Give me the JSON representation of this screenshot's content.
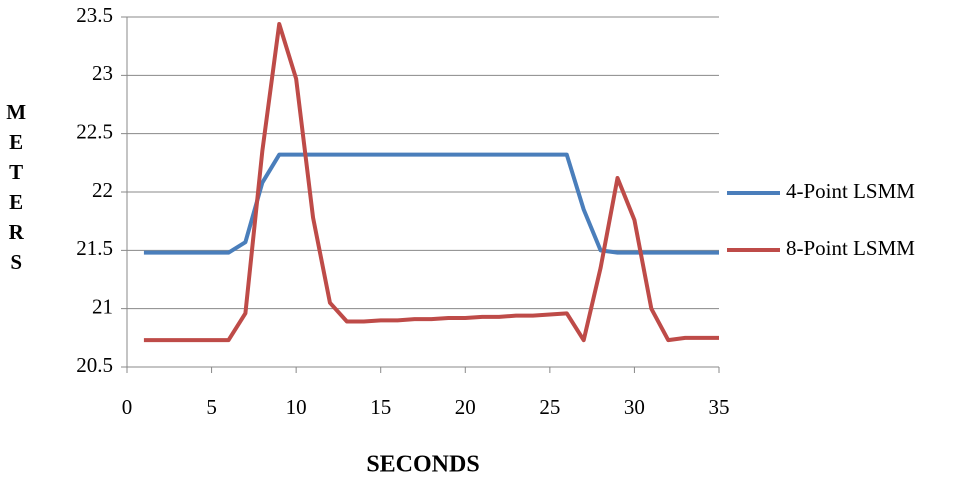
{
  "chart_data": {
    "type": "line",
    "x_label": "SECONDS",
    "y_label": "METERS",
    "x": [
      1,
      2,
      3,
      4,
      5,
      6,
      7,
      8,
      9,
      10,
      11,
      12,
      13,
      14,
      15,
      16,
      17,
      18,
      19,
      20,
      21,
      22,
      23,
      24,
      25,
      26,
      27,
      28,
      29,
      30,
      31,
      32,
      33,
      34,
      35
    ],
    "series": [
      {
        "name": "4-Point LSMM",
        "color": "#4a7ebb",
        "values": [
          21.48,
          21.48,
          21.48,
          21.48,
          21.48,
          21.48,
          21.57,
          22.08,
          22.32,
          22.32,
          22.32,
          22.32,
          22.32,
          22.32,
          22.32,
          22.32,
          22.32,
          22.32,
          22.32,
          22.32,
          22.32,
          22.32,
          22.32,
          22.32,
          22.32,
          22.32,
          21.85,
          21.5,
          21.48,
          21.48,
          21.48,
          21.48,
          21.48,
          21.48,
          21.48
        ]
      },
      {
        "name": "8-Point LSMM",
        "color": "#be4b48",
        "values": [
          20.73,
          20.73,
          20.73,
          20.73,
          20.73,
          20.73,
          20.96,
          22.35,
          23.44,
          22.97,
          21.78,
          21.05,
          20.89,
          20.89,
          20.9,
          20.9,
          20.91,
          20.91,
          20.92,
          20.92,
          20.93,
          20.93,
          20.94,
          20.94,
          20.95,
          20.96,
          20.73,
          21.35,
          22.12,
          21.76,
          21.0,
          20.73,
          20.75,
          20.75,
          20.75
        ]
      }
    ],
    "xlim": [
      0,
      35
    ],
    "xticks": [
      0,
      5,
      10,
      15,
      20,
      25,
      30,
      35
    ],
    "ylim": [
      20.5,
      23.5
    ],
    "yticks": [
      20.5,
      21,
      21.5,
      22,
      22.5,
      23,
      23.5
    ],
    "grid": true,
    "legend": "right"
  }
}
